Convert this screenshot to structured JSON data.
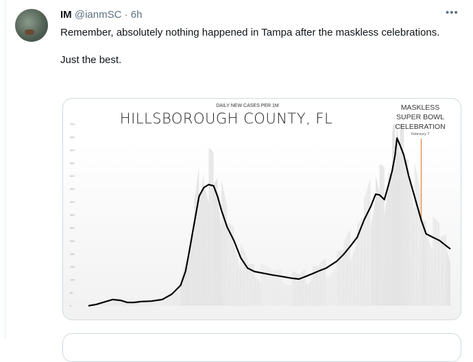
{
  "tweet": {
    "name": "IM",
    "handle": "@ianmSC",
    "separator": "·",
    "time": "6h",
    "more_icon": "more-horizontal-icon",
    "text_lines": [
      "Remember, absolutely nothing happened in Tampa after the maskless celebrations.",
      "Just the best."
    ]
  },
  "chart_data": {
    "type": "line",
    "subtitle": "DAILY NEW CASES PER 1M",
    "title": "HILLSBOROUGH COUNTY, FL",
    "ylim": [
      0,
      700
    ],
    "yticks": [
      0,
      50,
      100,
      150,
      200,
      250,
      300,
      350,
      400,
      450,
      500,
      550,
      600,
      650,
      700
    ],
    "line_color": "#000000",
    "annotation": {
      "lines": [
        "MASKLESS",
        "SUPER BOWL",
        "CELEBRATION"
      ],
      "date_label": "Febroury 7",
      "date": "2021-02-07",
      "color": "#e8955a"
    },
    "series": [
      {
        "x": [
          "2020-03-01",
          "2020-03-09",
          "2020-03-16",
          "2020-03-26",
          "2020-04-03",
          "2020-04-10",
          "2020-04-17",
          "2020-04-24",
          "2020-05-05",
          "2020-05-16",
          "2020-05-26",
          "2020-06-04",
          "2020-06-09",
          "2020-06-13",
          "2020-06-18",
          "2020-06-23",
          "2020-06-28",
          "2020-07-03",
          "2020-07-08",
          "2020-07-12",
          "2020-07-16",
          "2020-07-22",
          "2020-07-29",
          "2020-08-05",
          "2020-08-12",
          "2020-08-19",
          "2020-08-26",
          "2020-09-06",
          "2020-09-16",
          "2020-09-27",
          "2020-10-04",
          "2020-10-11",
          "2020-10-18",
          "2020-10-25",
          "2020-11-01",
          "2020-11-12",
          "2020-11-19",
          "2020-11-26",
          "2020-12-03",
          "2020-12-10",
          "2020-12-17",
          "2020-12-22",
          "2020-12-26",
          "2020-12-31",
          "2021-01-04",
          "2021-01-08",
          "2021-01-11",
          "2021-01-13",
          "2021-01-16",
          "2021-01-20",
          "2021-01-25",
          "2021-01-31",
          "2021-02-07",
          "2021-02-12",
          "2021-02-19",
          "2021-02-26",
          "2021-03-05",
          "2021-03-09"
        ],
        "values": [
          0,
          5,
          13,
          24,
          21,
          13,
          13,
          16,
          18,
          24,
          45,
          79,
          132,
          211,
          317,
          422,
          456,
          467,
          462,
          422,
          369,
          303,
          251,
          185,
          145,
          132,
          127,
          119,
          113,
          106,
          103,
          113,
          124,
          135,
          145,
          172,
          198,
          230,
          264,
          330,
          383,
          430,
          427,
          409,
          462,
          520,
          580,
          646,
          620,
          580,
          501,
          422,
          330,
          277,
          264,
          251,
          230,
          219
        ]
      }
    ]
  }
}
